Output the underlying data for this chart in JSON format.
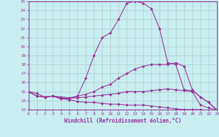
{
  "xlabel": "Windchill (Refroidissement éolien,°C)",
  "background_color": "#c8eef0",
  "grid_color": "#b0c8cc",
  "line_color": "#993399",
  "x_values": [
    0,
    1,
    2,
    3,
    4,
    5,
    6,
    7,
    8,
    9,
    10,
    11,
    12,
    13,
    14,
    15,
    16,
    17,
    18,
    19,
    20,
    21,
    22,
    23
  ],
  "line1": [
    15.0,
    14.5,
    14.4,
    14.5,
    14.4,
    14.3,
    14.5,
    16.5,
    19.0,
    21.0,
    21.5,
    23.0,
    24.8,
    25.0,
    24.8,
    24.2,
    22.0,
    18.2,
    18.0,
    15.2,
    15.1,
    14.4,
    13.8,
    12.9
  ],
  "line2": [
    15.0,
    14.5,
    14.4,
    14.5,
    14.3,
    14.2,
    14.5,
    14.7,
    15.0,
    15.5,
    15.8,
    16.5,
    17.0,
    17.5,
    17.8,
    18.0,
    18.0,
    18.0,
    18.2,
    17.8,
    15.2,
    14.4,
    13.8,
    13.0
  ],
  "line3": [
    15.0,
    14.8,
    14.4,
    14.5,
    14.2,
    14.3,
    14.3,
    14.4,
    14.5,
    14.6,
    14.7,
    14.8,
    15.0,
    15.0,
    15.0,
    15.1,
    15.2,
    15.3,
    15.2,
    15.1,
    15.0,
    13.5,
    13.2,
    12.9
  ],
  "line4": [
    15.0,
    14.5,
    14.4,
    14.5,
    14.2,
    14.1,
    13.9,
    13.8,
    13.8,
    13.7,
    13.6,
    13.6,
    13.5,
    13.5,
    13.5,
    13.4,
    13.3,
    13.2,
    13.1,
    13.0,
    13.0,
    13.0,
    12.9,
    12.8
  ],
  "ylim": [
    13,
    25
  ],
  "xlim": [
    0,
    23
  ],
  "yticks": [
    13,
    14,
    15,
    16,
    17,
    18,
    19,
    20,
    21,
    22,
    23,
    24,
    25
  ],
  "xticks": [
    0,
    1,
    2,
    3,
    4,
    5,
    6,
    7,
    8,
    9,
    10,
    11,
    12,
    13,
    14,
    15,
    16,
    17,
    18,
    19,
    20,
    21,
    22,
    23
  ]
}
